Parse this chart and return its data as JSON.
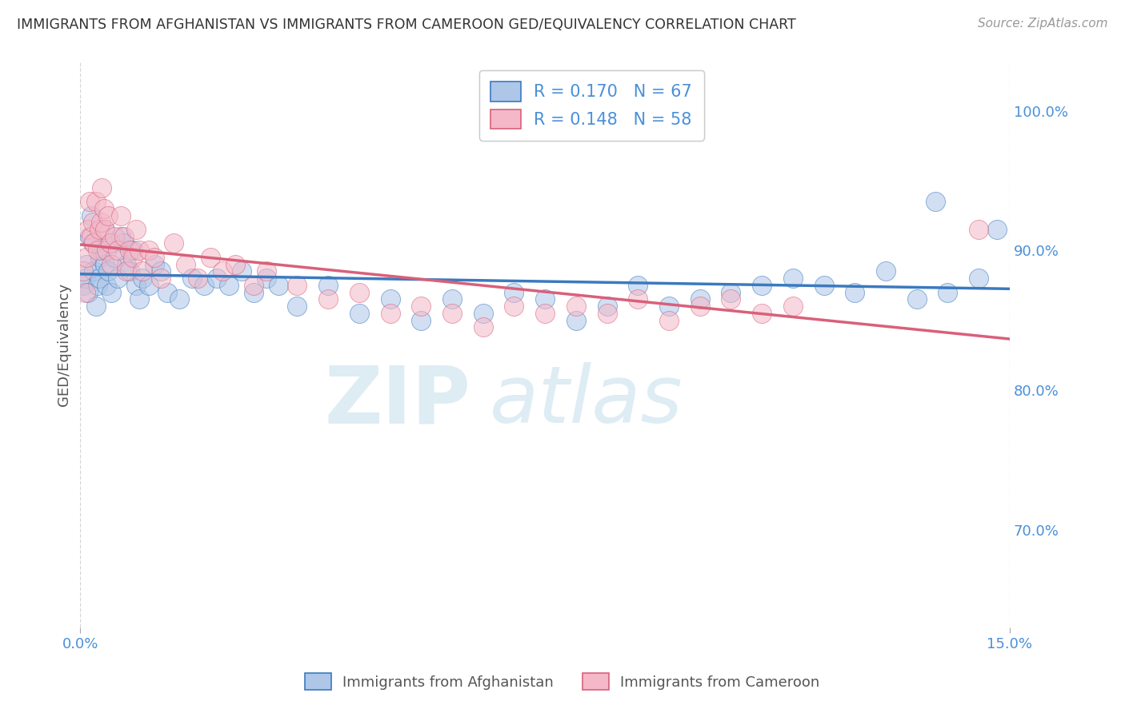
{
  "title": "IMMIGRANTS FROM AFGHANISTAN VS IMMIGRANTS FROM CAMEROON GED/EQUIVALENCY CORRELATION CHART",
  "source_text": "Source: ZipAtlas.com",
  "ylabel": "GED/Equivalency",
  "xlim": [
    0.0,
    15.0
  ],
  "ylim": [
    63.0,
    103.5
  ],
  "xtick_labels": [
    "0.0%",
    "15.0%"
  ],
  "ytick_labels": [
    "70.0%",
    "80.0%",
    "90.0%",
    "100.0%"
  ],
  "ytick_values": [
    70.0,
    80.0,
    90.0,
    100.0
  ],
  "xtick_values": [
    0.0,
    15.0
  ],
  "afghanistan_color": "#aec6e8",
  "cameroon_color": "#f4b8c8",
  "afghanistan_line_color": "#3a7abf",
  "cameroon_line_color": "#d9607a",
  "legend_text_color": "#4a90d9",
  "r_afghanistan": 0.17,
  "n_afghanistan": 67,
  "r_cameroon": 0.148,
  "n_cameroon": 58,
  "background_color": "#ffffff",
  "grid_color": "#cccccc",
  "af_x": [
    0.05,
    0.08,
    0.1,
    0.12,
    0.15,
    0.18,
    0.2,
    0.22,
    0.25,
    0.28,
    0.3,
    0.32,
    0.35,
    0.38,
    0.4,
    0.42,
    0.45,
    0.48,
    0.5,
    0.55,
    0.6,
    0.65,
    0.7,
    0.75,
    0.8,
    0.85,
    0.9,
    0.95,
    1.0,
    1.1,
    1.2,
    1.3,
    1.4,
    1.6,
    1.8,
    2.0,
    2.2,
    2.4,
    2.6,
    2.8,
    3.0,
    3.2,
    3.5,
    4.0,
    4.5,
    5.0,
    5.5,
    6.0,
    6.5,
    7.0,
    7.5,
    8.0,
    8.5,
    9.0,
    9.5,
    10.0,
    10.5,
    11.0,
    11.5,
    12.0,
    12.5,
    13.0,
    13.5,
    13.8,
    14.0,
    14.5,
    14.8
  ],
  "af_y": [
    87.5,
    88.0,
    89.0,
    87.0,
    91.0,
    92.5,
    90.5,
    88.5,
    86.0,
    87.5,
    88.0,
    89.5,
    90.0,
    91.5,
    89.0,
    87.5,
    88.5,
    90.5,
    87.0,
    89.5,
    88.0,
    91.0,
    90.5,
    89.0,
    88.5,
    90.0,
    87.5,
    86.5,
    88.0,
    87.5,
    89.0,
    88.5,
    87.0,
    86.5,
    88.0,
    87.5,
    88.0,
    87.5,
    88.5,
    87.0,
    88.0,
    87.5,
    86.0,
    87.5,
    85.5,
    86.5,
    85.0,
    86.5,
    85.5,
    87.0,
    86.5,
    85.0,
    86.0,
    87.5,
    86.0,
    86.5,
    87.0,
    87.5,
    88.0,
    87.5,
    87.0,
    88.5,
    86.5,
    93.5,
    87.0,
    88.0,
    91.5
  ],
  "cam_x": [
    0.05,
    0.08,
    0.1,
    0.13,
    0.15,
    0.18,
    0.2,
    0.22,
    0.25,
    0.28,
    0.3,
    0.33,
    0.35,
    0.38,
    0.4,
    0.42,
    0.45,
    0.48,
    0.5,
    0.55,
    0.6,
    0.65,
    0.7,
    0.75,
    0.8,
    0.85,
    0.9,
    0.95,
    1.0,
    1.1,
    1.2,
    1.3,
    1.5,
    1.7,
    1.9,
    2.1,
    2.3,
    2.5,
    2.8,
    3.0,
    3.5,
    4.0,
    4.5,
    5.0,
    5.5,
    6.0,
    6.5,
    7.0,
    7.5,
    8.0,
    8.5,
    9.0,
    9.5,
    10.0,
    10.5,
    11.0,
    11.5,
    14.5
  ],
  "cam_y": [
    88.5,
    87.0,
    89.5,
    91.5,
    93.5,
    91.0,
    92.0,
    90.5,
    93.5,
    90.0,
    91.5,
    92.0,
    94.5,
    93.0,
    91.5,
    90.0,
    92.5,
    90.5,
    89.0,
    91.0,
    90.0,
    92.5,
    91.0,
    88.5,
    90.0,
    89.5,
    91.5,
    90.0,
    88.5,
    90.0,
    89.5,
    88.0,
    90.5,
    89.0,
    88.0,
    89.5,
    88.5,
    89.0,
    87.5,
    88.5,
    87.5,
    86.5,
    87.0,
    85.5,
    86.0,
    85.5,
    84.5,
    86.0,
    85.5,
    86.0,
    85.5,
    86.5,
    85.0,
    86.0,
    86.5,
    85.5,
    86.0,
    91.5
  ]
}
